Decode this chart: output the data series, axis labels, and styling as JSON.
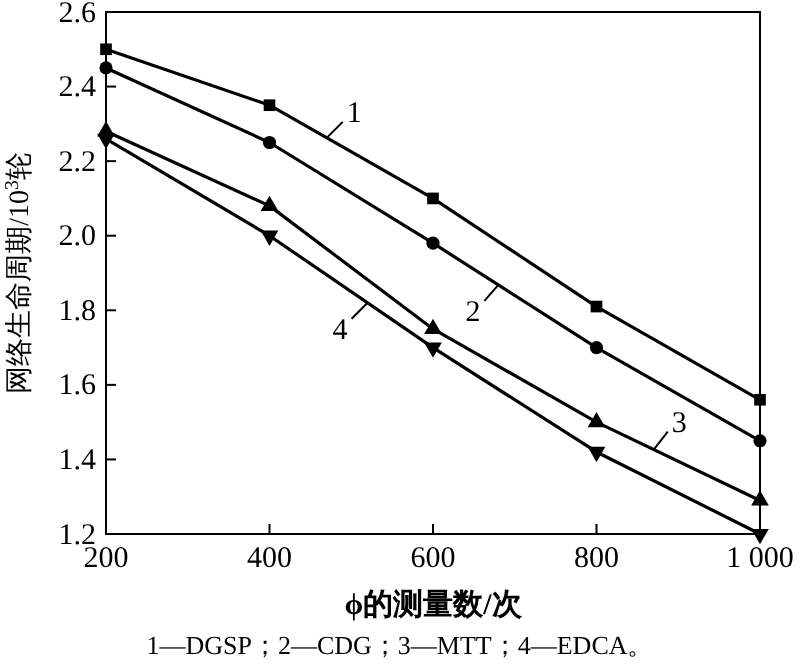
{
  "chart_data": {
    "type": "line",
    "xlabel": "ϕ的测量数/次",
    "ylabel": "网络生命周期/10$^{3}$轮",
    "x": [
      200,
      400,
      600,
      800,
      1000
    ],
    "series": [
      {
        "name": "1",
        "color": "#000000",
        "marker": "square",
        "values": [
          2.5,
          2.35,
          2.1,
          1.81,
          1.56
        ]
      },
      {
        "name": "2",
        "color": "#000000",
        "marker": "circle",
        "values": [
          2.45,
          2.25,
          1.98,
          1.7,
          1.45
        ]
      },
      {
        "name": "3",
        "color": "#000000",
        "marker": "triangle",
        "values": [
          2.28,
          2.08,
          1.75,
          1.5,
          1.29
        ]
      },
      {
        "name": "4",
        "color": "#000000",
        "marker": "triangle-down",
        "values": [
          2.26,
          2.0,
          1.7,
          1.42,
          1.2
        ]
      }
    ],
    "xlim": [
      200,
      1000
    ],
    "xticks": [
      200,
      400,
      600,
      800,
      {
        "value": 1000,
        "label": "1 000"
      }
    ],
    "ylim": [
      1.2,
      2.6
    ],
    "yticks": [
      {
        "value": 1.2,
        "label": "1.2"
      },
      {
        "value": 1.4,
        "label": "1.4"
      },
      {
        "value": 1.6,
        "label": "1.6"
      },
      {
        "value": 1.8,
        "label": "1.8"
      },
      {
        "value": 2.0,
        "label": "2.0"
      },
      {
        "value": 2.2,
        "label": "2.2"
      },
      {
        "value": 2.4,
        "label": "2.4"
      },
      {
        "value": 2.6,
        "label": "2.6"
      }
    ],
    "grid": false,
    "legend": "center",
    "line_style": "solid",
    "annotations": [
      "1—DGSP；2—CDG；3—MTT；4—EDCA。"
    ]
  }
}
